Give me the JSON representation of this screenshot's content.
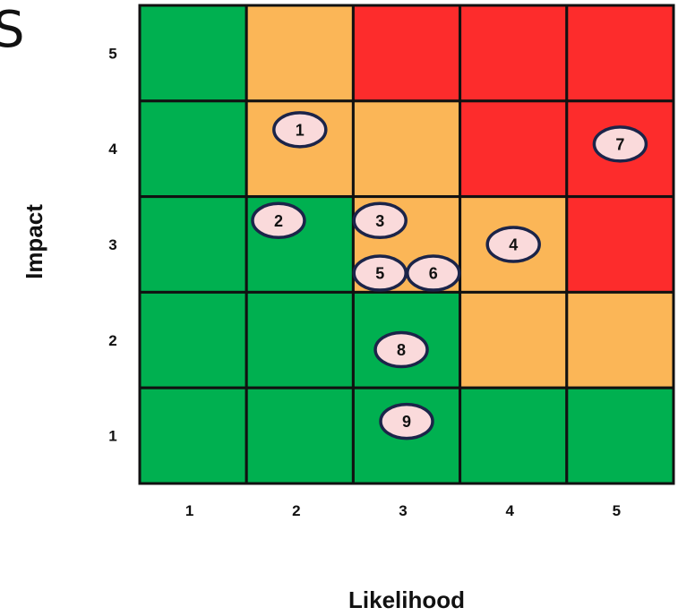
{
  "fragment_text": "S",
  "chart_data": {
    "type": "heatmap",
    "title": "",
    "xlabel": "Likelihood",
    "ylabel": "Impact",
    "x_ticks": [
      "1",
      "2",
      "3",
      "4",
      "5"
    ],
    "y_ticks": [
      "1",
      "2",
      "3",
      "4",
      "5"
    ],
    "xlim": [
      1,
      5
    ],
    "ylim": [
      1,
      5
    ],
    "grid": true,
    "legend": "none",
    "colors": {
      "green": "#00b050",
      "amber": "#fbb657",
      "red": "#fd2c2c",
      "border": "#111111",
      "marker_fill": "#fadadb",
      "marker_stroke": "#1b2449"
    },
    "cells": [
      [
        "green",
        "amber",
        "red",
        "red",
        "red"
      ],
      [
        "green",
        "amber",
        "amber",
        "red",
        "red"
      ],
      [
        "green",
        "green",
        "amber",
        "amber",
        "red"
      ],
      [
        "green",
        "green",
        "green",
        "amber",
        "amber"
      ],
      [
        "green",
        "green",
        "green",
        "green",
        "green"
      ]
    ],
    "points": [
      {
        "label": "1",
        "likelihood": 2.5,
        "impact": 4.7
      },
      {
        "label": "2",
        "likelihood": 2.3,
        "impact": 3.75
      },
      {
        "label": "3",
        "likelihood": 3.25,
        "impact": 3.75
      },
      {
        "label": "4",
        "likelihood": 4.5,
        "impact": 3.5
      },
      {
        "label": "5",
        "likelihood": 3.25,
        "impact": 3.2
      },
      {
        "label": "6",
        "likelihood": 3.75,
        "impact": 3.2
      },
      {
        "label": "7",
        "likelihood": 5.5,
        "impact": 4.55
      },
      {
        "label": "8",
        "likelihood": 3.45,
        "impact": 2.4
      },
      {
        "label": "9",
        "likelihood": 3.5,
        "impact": 1.65
      }
    ]
  }
}
